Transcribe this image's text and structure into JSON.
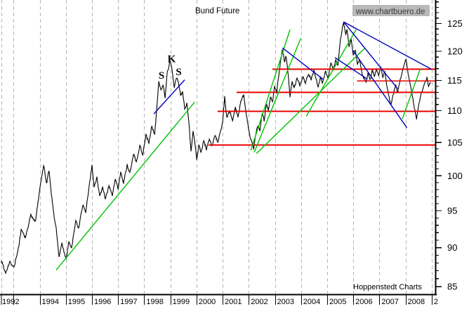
{
  "title": "Bund Future",
  "watermark": "www.chartbuero.de",
  "credit": "Hoppenstedt Charts",
  "colors": {
    "price": "#000000",
    "grid": "#b4b4b4",
    "support_resistance": "#e80000",
    "uptrend": "#00c400",
    "downtrend": "#0000bb",
    "watermark_bg": "#b9b9b9",
    "watermark_text": "#3a3a3a",
    "axis": "#000000"
  },
  "chart_data": {
    "type": "line",
    "title": "Bund Future",
    "xlabel": "",
    "ylabel": "",
    "x_axis": {
      "unit": "year",
      "start_label": "1992",
      "labeled_years": [
        1994,
        1995,
        1996,
        1997,
        1998,
        1999,
        2000,
        2001,
        2002,
        2003,
        2004,
        2005,
        2006,
        2007,
        2008
      ],
      "partial_end_label": "2",
      "gridline_year_first": 1993,
      "gridline_year_last": 2009,
      "grid": "dashed-vertical"
    },
    "y_axis": {
      "scale": "log",
      "side": "right",
      "major_tick_labels": [
        125,
        120,
        115,
        110,
        105,
        100,
        95,
        90,
        85
      ],
      "minor_tick_step": 1,
      "visible_range": [
        84.3,
        129.4
      ]
    },
    "series": [
      {
        "name": "Bund Future",
        "points": [
          [
            1992.53,
            88.4
          ],
          [
            1992.7,
            86.7
          ],
          [
            1992.86,
            88.1
          ],
          [
            1993.02,
            87.4
          ],
          [
            1993.18,
            89.8
          ],
          [
            1993.29,
            92.4
          ],
          [
            1993.45,
            91.2
          ],
          [
            1993.66,
            94.5
          ],
          [
            1993.83,
            93.4
          ],
          [
            1993.99,
            97.7
          ],
          [
            1994.15,
            101.8
          ],
          [
            1994.26,
            99.0
          ],
          [
            1994.36,
            100.7
          ],
          [
            1994.52,
            95.0
          ],
          [
            1994.63,
            92.6
          ],
          [
            1994.74,
            88.8
          ],
          [
            1994.85,
            90.5
          ],
          [
            1994.93,
            89.4
          ],
          [
            1995.01,
            88.5
          ],
          [
            1995.12,
            90.7
          ],
          [
            1995.22,
            90.0
          ],
          [
            1995.38,
            93.6
          ],
          [
            1995.49,
            92.6
          ],
          [
            1995.65,
            96.0
          ],
          [
            1995.76,
            94.7
          ],
          [
            1995.92,
            99.0
          ],
          [
            1996.0,
            101.5
          ],
          [
            1996.08,
            98.5
          ],
          [
            1996.19,
            99.7
          ],
          [
            1996.3,
            97.0
          ],
          [
            1996.41,
            98.5
          ],
          [
            1996.51,
            96.7
          ],
          [
            1996.65,
            98.5
          ],
          [
            1996.78,
            97.3
          ],
          [
            1996.89,
            99.3
          ],
          [
            1997.0,
            98.1
          ],
          [
            1997.1,
            100.3
          ],
          [
            1997.21,
            99.0
          ],
          [
            1997.35,
            101.6
          ],
          [
            1997.45,
            100.3
          ],
          [
            1997.59,
            103.2
          ],
          [
            1997.7,
            101.8
          ],
          [
            1997.83,
            104.6
          ],
          [
            1997.94,
            103.1
          ],
          [
            1998.07,
            106.1
          ],
          [
            1998.18,
            104.8
          ],
          [
            1998.29,
            107.5
          ],
          [
            1998.4,
            106.3
          ],
          [
            1998.48,
            110.3
          ],
          [
            1998.56,
            114.9
          ],
          [
            1998.64,
            113.4
          ],
          [
            1998.72,
            114.3
          ],
          [
            1998.8,
            112.1
          ],
          [
            1998.88,
            116.1
          ],
          [
            1998.99,
            118.5
          ],
          [
            1999.07,
            116.7
          ],
          [
            1999.15,
            113.8
          ],
          [
            1999.23,
            115.5
          ],
          [
            1999.31,
            114.9
          ],
          [
            1999.39,
            112.5
          ],
          [
            1999.47,
            113.2
          ],
          [
            1999.55,
            110.2
          ],
          [
            1999.63,
            111.3
          ],
          [
            1999.71,
            108.3
          ],
          [
            1999.79,
            103.6
          ],
          [
            1999.87,
            106.9
          ],
          [
            1999.95,
            104.7
          ],
          [
            2000.01,
            102.3
          ],
          [
            2000.09,
            104.6
          ],
          [
            2000.17,
            103.4
          ],
          [
            2000.28,
            105.3
          ],
          [
            2000.38,
            104.0
          ],
          [
            2000.49,
            105.5
          ],
          [
            2000.6,
            104.4
          ],
          [
            2000.71,
            106.0
          ],
          [
            2000.81,
            105.0
          ],
          [
            2000.92,
            106.7
          ],
          [
            2001.0,
            108.2
          ],
          [
            2001.08,
            112.2
          ],
          [
            2001.16,
            108.9
          ],
          [
            2001.27,
            110.0
          ],
          [
            2001.38,
            108.5
          ],
          [
            2001.49,
            110.5
          ],
          [
            2001.59,
            109.0
          ],
          [
            2001.7,
            111.5
          ],
          [
            2001.81,
            112.5
          ],
          [
            2001.89,
            110.0
          ],
          [
            2001.97,
            107.8
          ],
          [
            2002.05,
            105.8
          ],
          [
            2002.13,
            104.8
          ],
          [
            2002.19,
            104.2
          ],
          [
            2002.27,
            106.2
          ],
          [
            2002.35,
            107.6
          ],
          [
            2002.43,
            106.7
          ],
          [
            2002.51,
            109.6
          ],
          [
            2002.59,
            108.4
          ],
          [
            2002.67,
            111.0
          ],
          [
            2002.75,
            110.0
          ],
          [
            2002.83,
            112.3
          ],
          [
            2002.91,
            111.4
          ],
          [
            2002.99,
            113.9
          ],
          [
            2003.07,
            113.0
          ],
          [
            2003.15,
            115.9
          ],
          [
            2003.23,
            118.6
          ],
          [
            2003.29,
            120.4
          ],
          [
            2003.37,
            118.3
          ],
          [
            2003.42,
            119.3
          ],
          [
            2003.5,
            116.3
          ],
          [
            2003.58,
            112.3
          ],
          [
            2003.66,
            114.8
          ],
          [
            2003.74,
            113.6
          ],
          [
            2003.85,
            115.5
          ],
          [
            2003.96,
            114.1
          ],
          [
            2004.07,
            115.7
          ],
          [
            2004.17,
            114.5
          ],
          [
            2004.28,
            116.2
          ],
          [
            2004.39,
            115.0
          ],
          [
            2004.5,
            116.7
          ],
          [
            2004.58,
            115.2
          ],
          [
            2004.66,
            113.7
          ],
          [
            2004.74,
            115.5
          ],
          [
            2004.82,
            114.5
          ],
          [
            2004.93,
            116.6
          ],
          [
            2005.04,
            115.5
          ],
          [
            2005.14,
            117.9
          ],
          [
            2005.25,
            116.6
          ],
          [
            2005.33,
            118.7
          ],
          [
            2005.41,
            117.7
          ],
          [
            2005.49,
            121.5
          ],
          [
            2005.57,
            123.7
          ],
          [
            2005.63,
            125.2
          ],
          [
            2005.71,
            122.8
          ],
          [
            2005.76,
            123.8
          ],
          [
            2005.84,
            120.8
          ],
          [
            2005.92,
            122.0
          ],
          [
            2006.0,
            119.1
          ],
          [
            2006.08,
            120.3
          ],
          [
            2006.16,
            117.5
          ],
          [
            2006.24,
            118.7
          ],
          [
            2006.33,
            116.3
          ],
          [
            2006.41,
            115.5
          ],
          [
            2006.49,
            114.7
          ],
          [
            2006.57,
            116.2
          ],
          [
            2006.65,
            115.3
          ],
          [
            2006.73,
            116.7
          ],
          [
            2006.81,
            115.7
          ],
          [
            2006.89,
            117.0
          ],
          [
            2006.97,
            115.9
          ],
          [
            2007.05,
            117.4
          ],
          [
            2007.13,
            115.5
          ],
          [
            2007.21,
            116.3
          ],
          [
            2007.29,
            113.9
          ],
          [
            2007.37,
            112.3
          ],
          [
            2007.45,
            111.0
          ],
          [
            2007.53,
            112.6
          ],
          [
            2007.62,
            114.2
          ],
          [
            2007.7,
            112.9
          ],
          [
            2007.78,
            114.8
          ],
          [
            2007.86,
            116.3
          ],
          [
            2007.94,
            117.5
          ],
          [
            2008.02,
            118.5
          ],
          [
            2008.1,
            116.3
          ],
          [
            2008.18,
            114.2
          ],
          [
            2008.26,
            112.3
          ],
          [
            2008.34,
            110.4
          ],
          [
            2008.42,
            108.9
          ],
          [
            2008.5,
            111.0
          ],
          [
            2008.58,
            112.3
          ],
          [
            2008.66,
            113.5
          ],
          [
            2008.74,
            114.8
          ],
          [
            2008.82,
            115.5
          ],
          [
            2008.88,
            113.9
          ],
          [
            2008.96,
            114.7
          ]
        ]
      }
    ],
    "support_resistance_lines": [
      {
        "value": 116.9,
        "from_year": 2002.91,
        "to_year": 2009.15
      },
      {
        "value": 114.9,
        "from_year": 2006.14,
        "to_year": 2009.15
      },
      {
        "value": 113.0,
        "from_year": 2001.54,
        "to_year": 2009.15
      },
      {
        "value": 109.9,
        "from_year": 2000.81,
        "to_year": 2009.15
      },
      {
        "value": 104.6,
        "from_year": 2000.46,
        "to_year": 2009.15
      }
    ],
    "uptrend_lines": [
      {
        "from": [
          1994.63,
          87.1
        ],
        "to": [
          1999.93,
          111.4
        ]
      },
      {
        "from": [
          2002.08,
          103.8
        ],
        "to": [
          2003.58,
          123.9
        ]
      },
      {
        "from": [
          2002.21,
          103.5
        ],
        "to": [
          2003.99,
          122.3
        ]
      },
      {
        "from": [
          2002.29,
          103.3
        ],
        "to": [
          2006.43,
          120.5
        ]
      },
      {
        "from": [
          2004.2,
          109.1
        ],
        "to": [
          2006.11,
          123.9
        ]
      },
      {
        "from": [
          2007.88,
          108.7
        ],
        "to": [
          2008.56,
          116.9
        ]
      }
    ],
    "downtrend_lines": [
      {
        "from": [
          1998.37,
          109.5
        ],
        "to": [
          1999.55,
          115.1
        ]
      },
      {
        "from": [
          2003.29,
          120.6
        ],
        "to": [
          2004.87,
          115.1
        ]
      },
      {
        "from": [
          2005.63,
          125.3
        ],
        "to": [
          2008.99,
          116.9
        ]
      },
      {
        "from": [
          2005.63,
          125.3
        ],
        "to": [
          2007.7,
          113.6
        ]
      },
      {
        "from": [
          2005.3,
          118.9
        ],
        "to": [
          2006.54,
          115.2
        ]
      },
      {
        "from": [
          2005.98,
          120.2
        ],
        "to": [
          2008.05,
          107.3
        ]
      }
    ],
    "annotations": [
      {
        "text": "S",
        "year": 1998.66,
        "value": 115.3
      },
      {
        "text": "K",
        "year": 1999.05,
        "value": 118.1
      },
      {
        "text": "S",
        "year": 1999.32,
        "value": 115.9
      }
    ],
    "legend": "none"
  }
}
